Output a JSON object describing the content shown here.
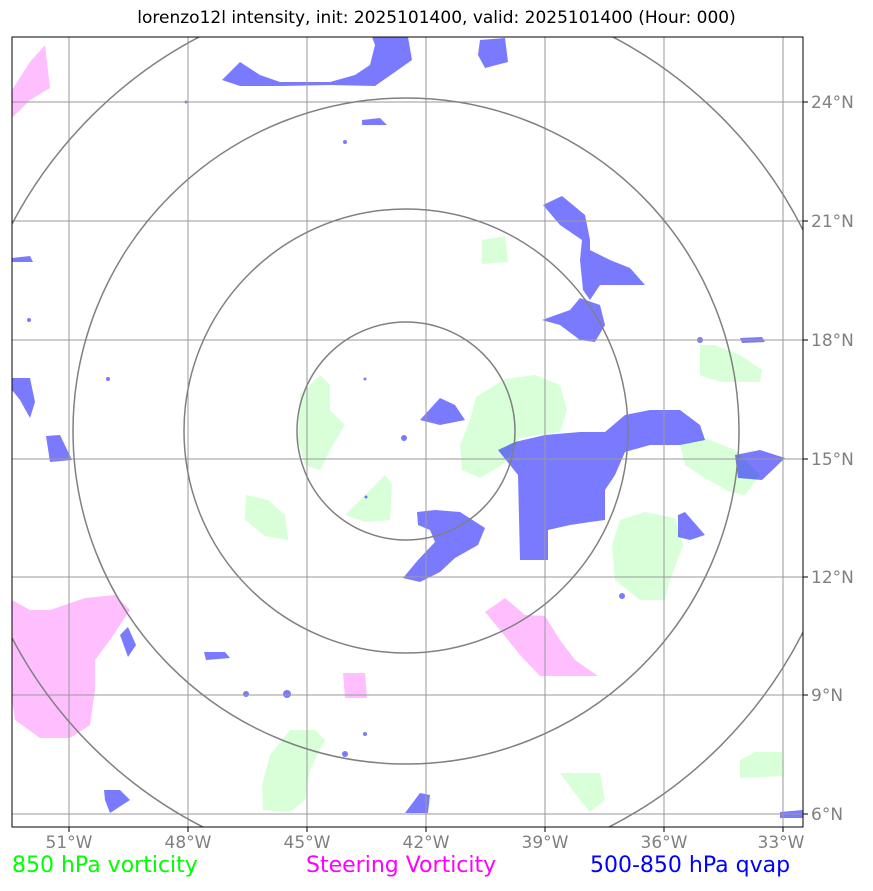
{
  "title": "lorenzo12l intensity, init: 2025101400, valid: 2025101400 (Hour: 000)",
  "longitude_labels": [
    "51°W",
    "48°W",
    "45°W",
    "42°W",
    "39°W",
    "36°W",
    "33°W"
  ],
  "latitude_labels": [
    "24°N",
    "21°N",
    "18°N",
    "15°N",
    "12°N",
    "9°N",
    "6°N"
  ],
  "legend": [
    {
      "label": "850 hPa vorticity",
      "color": "#00ff00"
    },
    {
      "label": "Steering Vorticity",
      "color": "#ff00ff"
    },
    {
      "label": "500-850 hPa qvap",
      "color": "#0000ff"
    }
  ],
  "colors": {
    "vorticity_850_fill": "#d9ffd9",
    "steering_vorticity_fill": "#ffbfff",
    "qvap_fill": "#7a7aff",
    "grid": "#999999",
    "range_rings": "#808080",
    "axis_labels": "#808080"
  }
}
